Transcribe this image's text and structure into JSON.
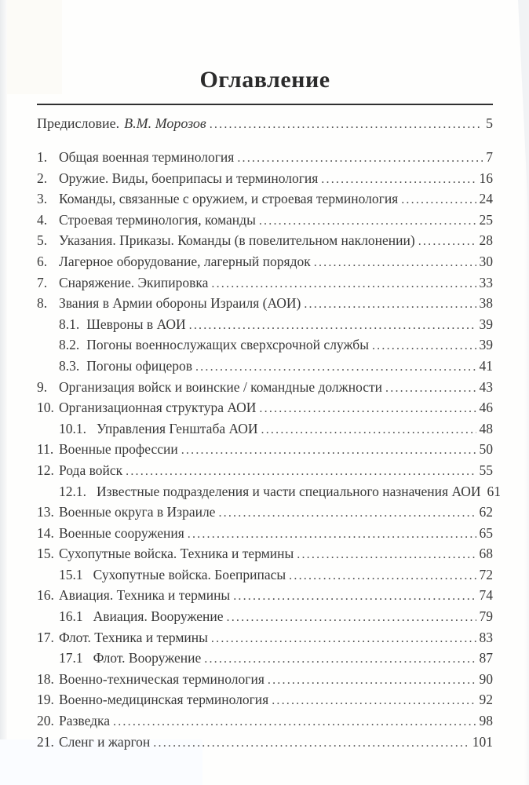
{
  "header": {
    "title": "Оглавление"
  },
  "toc": {
    "preface": {
      "label": "Предисловие.",
      "author": "В.М. Морозов",
      "page": "5"
    },
    "entries": [
      {
        "num": "1.",
        "title": "Общая военная терминология",
        "page": "7",
        "level": 0
      },
      {
        "num": "2.",
        "title": "Оружие. Виды, боеприпасы и терминология",
        "page": "16",
        "level": 0
      },
      {
        "num": "3.",
        "title": "Команды, связанные с оружием, и строевая терминология",
        "page": "24",
        "level": 0
      },
      {
        "num": "4.",
        "title": "Строевая терминология, команды",
        "page": "25",
        "level": 0
      },
      {
        "num": "5.",
        "title": "Указания. Приказы. Команды (в повелительном наклонении)",
        "page": "28",
        "level": 0
      },
      {
        "num": "6.",
        "title": "Лагерное оборудование, лагерный порядок",
        "page": "30",
        "level": 0
      },
      {
        "num": "7.",
        "title": "Снаряжение. Экипировка",
        "page": "33",
        "level": 0
      },
      {
        "num": "8.",
        "title": "Звания в Армии обороны Израиля (АОИ)",
        "page": "38",
        "level": 0
      },
      {
        "num": "8.1.",
        "title": "Шевроны в АОИ",
        "page": "39",
        "level": 1
      },
      {
        "num": "8.2.",
        "title": "Погоны военнослужащих сверхсрочной службы",
        "page": "39",
        "level": 1
      },
      {
        "num": "8.3.",
        "title": "Погоны офицеров",
        "page": "41",
        "level": 1
      },
      {
        "num": "9.",
        "title": "Организация войск и воинские / командные должности",
        "page": "43",
        "level": 0
      },
      {
        "num": "10.",
        "title": "Организационная структура АОИ",
        "page": "46",
        "level": 0
      },
      {
        "num": "10.1.",
        "title": "Управления Генштаба АОИ",
        "page": "48",
        "level": 1,
        "wide_gap": true
      },
      {
        "num": "11.",
        "title": "Военные профессии",
        "page": "50",
        "level": 0
      },
      {
        "num": "12.",
        "title": "Рода войск",
        "page": "55",
        "level": 0
      },
      {
        "num": "12.1.",
        "title": "Известные подразделения и части специального назначения АОИ",
        "page": "61",
        "level": 1,
        "wide_gap": true
      },
      {
        "num": "13.",
        "title": "Военные округа в Израиле",
        "page": "62",
        "level": 0
      },
      {
        "num": "14.",
        "title": "Военные сооружения",
        "page": "65",
        "level": 0
      },
      {
        "num": "15.",
        "title": "Сухопутные войска. Техника и термины",
        "page": "68",
        "level": 0
      },
      {
        "num": "15.1",
        "title": "Сухопутные войска. Боеприпасы",
        "page": "72",
        "level": 1,
        "wide_gap": true
      },
      {
        "num": "16.",
        "title": "Авиация. Техника и термины",
        "page": "74",
        "level": 0
      },
      {
        "num": "16.1",
        "title": "Авиация. Вооружение",
        "page": "79",
        "level": 1,
        "wide_gap": true
      },
      {
        "num": "17.",
        "title": "Флот. Техника и термины",
        "page": "83",
        "level": 0
      },
      {
        "num": "17.1",
        "title": "Флот. Вооружение",
        "page": "87",
        "level": 1,
        "wide_gap": true
      },
      {
        "num": "18.",
        "title": "Военно-техническая терминология",
        "page": "90",
        "level": 0
      },
      {
        "num": "19.",
        "title": "Военно-медицинская терминология",
        "page": "92",
        "level": 0
      },
      {
        "num": "20.",
        "title": "Разведка",
        "page": "98",
        "level": 0
      },
      {
        "num": "21.",
        "title": "Сленг и жаргон",
        "page": "101",
        "level": 0
      }
    ]
  }
}
